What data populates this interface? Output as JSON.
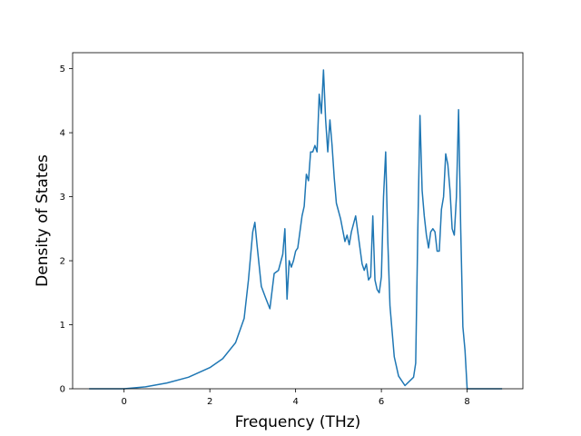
{
  "chart_data": {
    "type": "line",
    "title": "",
    "xlabel": "Frequency (THz)",
    "ylabel": "Density of States",
    "xlim": [
      -1.2,
      9.3
    ],
    "ylim": [
      0,
      5.25
    ],
    "xticks": [
      0,
      2,
      4,
      6,
      8
    ],
    "yticks": [
      0,
      1,
      2,
      3,
      4,
      5
    ],
    "grid": false,
    "legend": "none",
    "series": [
      {
        "color": "#1f77b4",
        "x": [
          -0.8,
          0.0,
          0.5,
          1.0,
          1.5,
          2.0,
          2.3,
          2.6,
          2.8,
          2.9,
          3.0,
          3.05,
          3.1,
          3.2,
          3.3,
          3.4,
          3.5,
          3.6,
          3.7,
          3.75,
          3.8,
          3.85,
          3.9,
          3.95,
          4.0,
          4.05,
          4.1,
          4.15,
          4.2,
          4.25,
          4.3,
          4.35,
          4.4,
          4.45,
          4.5,
          4.55,
          4.6,
          4.65,
          4.7,
          4.75,
          4.8,
          4.85,
          4.9,
          4.95,
          5.05,
          5.15,
          5.2,
          5.25,
          5.3,
          5.4,
          5.5,
          5.55,
          5.6,
          5.65,
          5.7,
          5.75,
          5.8,
          5.85,
          5.9,
          5.95,
          6.0,
          6.05,
          6.1,
          6.15,
          6.2,
          6.3,
          6.4,
          6.55,
          6.75,
          6.8,
          6.85,
          6.9,
          6.95,
          7.0,
          7.05,
          7.1,
          7.15,
          7.2,
          7.25,
          7.3,
          7.35,
          7.4,
          7.45,
          7.5,
          7.55,
          7.6,
          7.65,
          7.7,
          7.75,
          7.8,
          7.85,
          7.9,
          7.95,
          8.0,
          8.5,
          8.8
        ],
        "y": [
          0.0,
          0.0,
          0.03,
          0.09,
          0.18,
          0.33,
          0.47,
          0.72,
          1.1,
          1.7,
          2.45,
          2.6,
          2.25,
          1.6,
          1.42,
          1.25,
          1.8,
          1.85,
          2.1,
          2.5,
          1.4,
          2.0,
          1.9,
          2.0,
          2.15,
          2.2,
          2.45,
          2.7,
          2.85,
          3.35,
          3.25,
          3.7,
          3.7,
          3.8,
          3.7,
          4.6,
          4.3,
          4.98,
          4.2,
          3.7,
          4.2,
          3.8,
          3.3,
          2.9,
          2.65,
          2.3,
          2.4,
          2.25,
          2.45,
          2.7,
          2.2,
          1.95,
          1.85,
          1.95,
          1.7,
          1.75,
          2.7,
          1.7,
          1.55,
          1.5,
          1.75,
          3.0,
          3.7,
          2.3,
          1.3,
          0.5,
          0.2,
          0.05,
          0.18,
          0.4,
          2.5,
          4.27,
          3.1,
          2.7,
          2.4,
          2.2,
          2.45,
          2.5,
          2.45,
          2.15,
          2.15,
          2.8,
          3.0,
          3.67,
          3.5,
          3.1,
          2.5,
          2.4,
          3.0,
          4.36,
          2.5,
          0.97,
          0.6,
          0.0,
          0.0,
          0.0
        ]
      }
    ]
  }
}
